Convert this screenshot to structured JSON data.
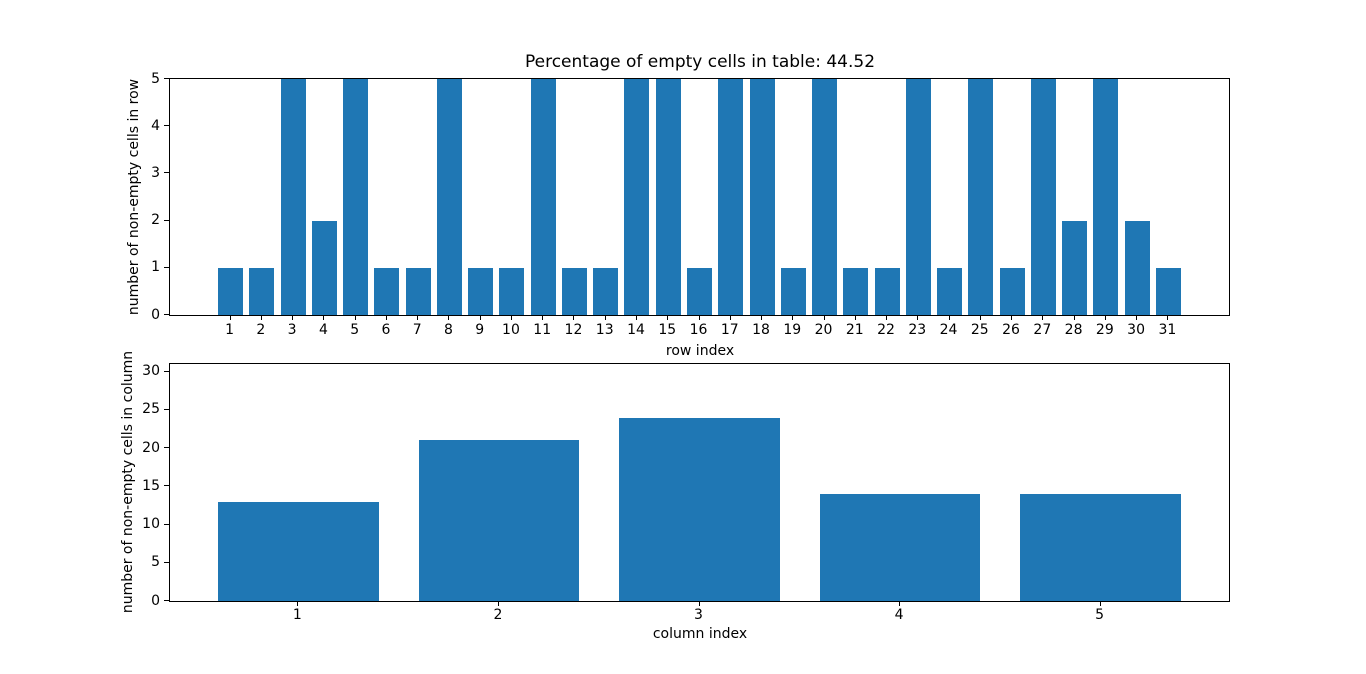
{
  "colors": {
    "bar": "#1f77b4",
    "axis": "#000000",
    "text": "#000000",
    "background": "#ffffff"
  },
  "chart_data": [
    {
      "type": "bar",
      "title": "Percentage of empty cells in table: 44.52",
      "xlabel": "row index",
      "ylabel": "number of non-empty cells in row",
      "categories": [
        1,
        2,
        3,
        4,
        5,
        6,
        7,
        8,
        9,
        10,
        11,
        12,
        13,
        14,
        15,
        16,
        17,
        18,
        19,
        20,
        21,
        22,
        23,
        24,
        25,
        26,
        27,
        28,
        29,
        30,
        31
      ],
      "values": [
        1,
        1,
        5,
        2,
        5,
        1,
        1,
        5,
        1,
        1,
        5,
        1,
        1,
        5,
        5,
        1,
        5,
        5,
        1,
        5,
        1,
        1,
        5,
        1,
        5,
        1,
        5,
        2,
        5,
        2,
        1
      ],
      "xlim": [
        -0.94,
        32.94
      ],
      "ylim": [
        0,
        5
      ],
      "yticks": [
        0,
        1,
        2,
        3,
        4,
        5
      ],
      "bar_width": 0.8,
      "grid": false,
      "legend": null
    },
    {
      "type": "bar",
      "title": "",
      "xlabel": "column index",
      "ylabel": "number of non-empty cells in column",
      "categories": [
        1,
        2,
        3,
        4,
        5
      ],
      "values": [
        13,
        21,
        24,
        14,
        14
      ],
      "xlim": [
        0.36,
        5.64
      ],
      "ylim": [
        0,
        31
      ],
      "yticks": [
        0,
        5,
        10,
        15,
        20,
        25,
        30
      ],
      "bar_width": 0.8,
      "grid": false,
      "legend": null
    }
  ]
}
